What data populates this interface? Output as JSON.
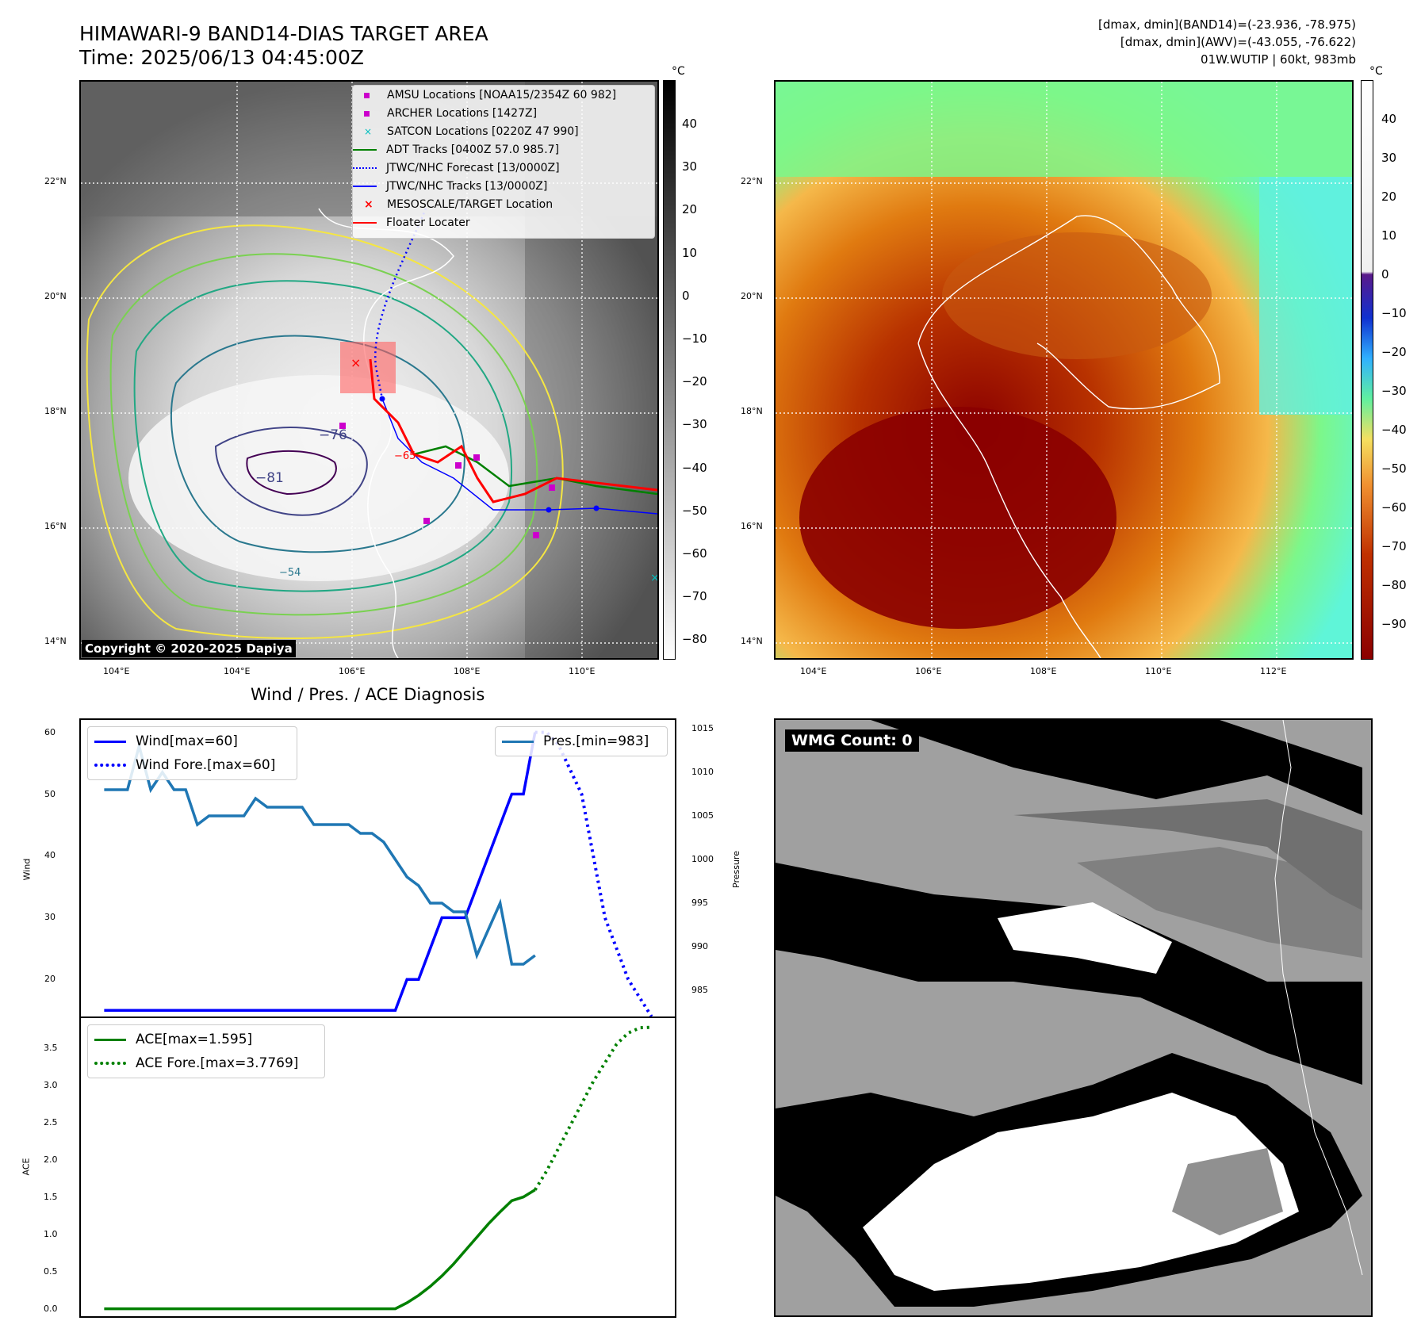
{
  "header": {
    "title_line1": "HIMAWARI-9 BAND14-DIAS TARGET AREA",
    "title_line2": "Time: 2025/06/13 04:45:00Z",
    "right_line1": "[dmax, dmin](BAND14)=(-23.936, -78.975)",
    "right_line2": "[dmax, dmin](AWV)=(-43.055, -76.622)",
    "right_line3": "01W.WUTIP | 60kt, 983mb"
  },
  "colors": {
    "wind": "#0000ff",
    "pressure": "#1f77b4",
    "ace": "#008000",
    "floater": "#ff0000",
    "adt": "#008000"
  },
  "map1": {
    "lat_labels": [
      "22°N",
      "20°N",
      "18°N",
      "16°N",
      "14°N"
    ],
    "lon_labels": [
      "104°E",
      "106°E",
      "108°E",
      "110°E",
      "112°E"
    ],
    "colorbar_unit": "°C",
    "colorbar_ticks": [
      "40",
      "30",
      "20",
      "10",
      "0",
      "−10",
      "−20",
      "−30",
      "−40",
      "−50",
      "−60",
      "−70",
      "−80"
    ],
    "contour_labels": [
      "−76",
      "−81",
      "−54",
      "−65"
    ],
    "copyright": "Copyright © 2020-2025 Dapiya",
    "legend": [
      {
        "label": "AMSU Locations [NOAA15/2354Z 60 982]",
        "icon": "magenta-square"
      },
      {
        "label": "ARCHER Locations [1427Z]",
        "icon": "magenta-square"
      },
      {
        "label": "SATCON Locations [0220Z 47 990]",
        "icon": "cyan-x"
      },
      {
        "label": "ADT Tracks [0400Z 57.0 985.7]",
        "icon": "green-line"
      },
      {
        "label": "JTWC/NHC Forecast [13/0000Z]",
        "icon": "blue-dotted-line"
      },
      {
        "label": "JTWC/NHC Tracks [13/0000Z]",
        "icon": "blue-line-dot"
      },
      {
        "label": "MESOSCALE/TARGET Location",
        "icon": "red-x"
      },
      {
        "label": "Floater Locater",
        "icon": "red-line"
      }
    ]
  },
  "map2": {
    "lat_labels": [
      "22°N",
      "20°N",
      "18°N",
      "16°N",
      "14°N"
    ],
    "lon_labels": [
      "104°E",
      "106°E",
      "108°E",
      "110°E",
      "112°E"
    ],
    "colorbar_unit": "°C",
    "colorbar_ticks": [
      "40",
      "30",
      "20",
      "10",
      "0",
      "−10",
      "−20",
      "−30",
      "−40",
      "−50",
      "−60",
      "−70",
      "−80",
      "−90"
    ]
  },
  "diagnosis": {
    "title": "Wind / Pres. / ACE Diagnosis",
    "wind_ylabel": "Wind",
    "pres_ylabel": "Pressure",
    "ace_ylabel": "ACE",
    "legend_wind": "Wind[max=60]",
    "legend_wind_fore": "Wind Fore.[max=60]",
    "legend_pres": "Pres.[min=983]",
    "legend_ace": "ACE[max=1.595]",
    "legend_ace_fore": "ACE Fore.[max=3.7769]"
  },
  "wmg": {
    "label": "WMG Count: 0"
  },
  "chart_data": [
    {
      "type": "line",
      "title": "Wind / Pres. / ACE Diagnosis",
      "ylabel": "Wind",
      "ylim": [
        14,
        62
      ],
      "y2label": "Pressure",
      "y2lim": [
        982,
        1016
      ],
      "x": [
        0,
        1,
        2,
        3,
        4,
        5,
        6,
        7,
        8,
        9,
        10,
        11,
        12,
        13,
        14,
        15,
        16,
        17,
        18,
        19,
        20,
        21,
        22,
        23,
        24,
        25,
        26,
        27,
        28,
        29,
        30,
        31,
        32,
        33,
        34,
        35,
        36,
        37,
        38,
        39,
        40,
        41,
        42,
        43,
        44,
        45,
        46,
        47,
        48,
        49,
        50
      ],
      "series": [
        {
          "name": "Wind[max=60]",
          "axis": "left",
          "style": "solid",
          "x": [
            0,
            25,
            26,
            27,
            28,
            29,
            30,
            31,
            32,
            33,
            34,
            35,
            36,
            37
          ],
          "values": [
            15,
            15,
            20,
            20,
            25,
            30,
            30,
            30,
            35,
            40,
            45,
            50,
            50,
            60
          ]
        },
        {
          "name": "Wind Fore.[max=60]",
          "axis": "left",
          "style": "dotted",
          "x": [
            37,
            38,
            39,
            40,
            41,
            42,
            43,
            44,
            45,
            46,
            47
          ],
          "values": [
            60,
            60,
            58,
            54,
            50,
            40,
            30,
            25,
            20,
            17,
            14
          ]
        },
        {
          "name": "Pres.[min=983]",
          "axis": "right",
          "style": "solid",
          "x": [
            0,
            1,
            2,
            3,
            4,
            5,
            6,
            7,
            8,
            9,
            10,
            11,
            12,
            13,
            14,
            15,
            16,
            17,
            18,
            19,
            20,
            21,
            22,
            23,
            24,
            25,
            26,
            27,
            28,
            29,
            30,
            31,
            32,
            33,
            34,
            35,
            36,
            37
          ],
          "values": [
            1008,
            1008,
            1008,
            1013,
            1008,
            1010,
            1008,
            1008,
            1004,
            1005,
            1005,
            1005,
            1005,
            1007,
            1006,
            1006,
            1006,
            1006,
            1004,
            1004,
            1004,
            1004,
            1003,
            1003,
            1002,
            1000,
            998,
            997,
            995,
            995,
            994,
            994,
            989,
            992,
            995,
            988,
            988,
            989
          ]
        }
      ]
    },
    {
      "type": "line",
      "ylabel": "ACE",
      "ylim": [
        -0.1,
        3.9
      ],
      "x": [
        0,
        1,
        2,
        3,
        4,
        5,
        6,
        7,
        8,
        9,
        10,
        11,
        12,
        13,
        14,
        15,
        16,
        17,
        18,
        19,
        20,
        21,
        22,
        23,
        24,
        25,
        26,
        27,
        28,
        29,
        30,
        31,
        32,
        33,
        34,
        35,
        36,
        37,
        38,
        39,
        40,
        41,
        42,
        43,
        44,
        45,
        46,
        47
      ],
      "series": [
        {
          "name": "ACE[max=1.595]",
          "style": "solid",
          "x": [
            0,
            25,
            26,
            27,
            28,
            29,
            30,
            31,
            32,
            33,
            34,
            35,
            36,
            37
          ],
          "values": [
            0,
            0,
            0.08,
            0.18,
            0.3,
            0.44,
            0.6,
            0.78,
            0.96,
            1.14,
            1.3,
            1.45,
            1.5,
            1.595
          ]
        },
        {
          "name": "ACE Fore.[max=3.7769]",
          "style": "dotted",
          "x": [
            37,
            38,
            39,
            40,
            41,
            42,
            43,
            44,
            45,
            46,
            47
          ],
          "values": [
            1.595,
            1.85,
            2.15,
            2.45,
            2.75,
            3.05,
            3.3,
            3.55,
            3.7,
            3.77,
            3.7769
          ]
        }
      ],
      "yticks": [
        "0.0",
        "0.5",
        "1.0",
        "1.5",
        "2.0",
        "2.5",
        "3.0",
        "3.5"
      ]
    }
  ]
}
